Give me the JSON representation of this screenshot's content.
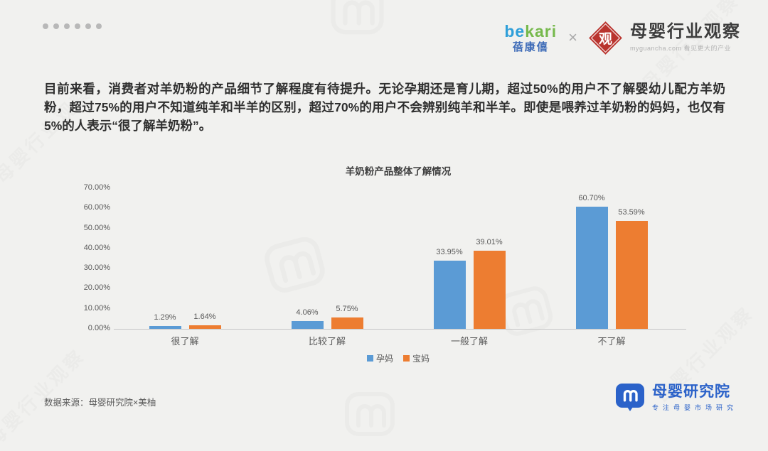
{
  "page": {
    "background": "#f1f1ef"
  },
  "header": {
    "brand_left": {
      "en_part1": "be",
      "en_part2": "kari",
      "cn_name": "蓓康僖"
    },
    "separator": "×",
    "brand_right": {
      "badge_char": "观",
      "badge_color": "#b9342e",
      "title": "母婴行业观察",
      "subtitle": "myguancha.com 看见更大的产业"
    }
  },
  "intro": {
    "text": "目前来看，消费者对羊奶粉的产品细节了解程度有待提升。无论孕期还是育儿期，超过50%的用户不了解婴幼儿配方羊奶粉，超过75%的用户不知道纯羊和半羊的区别，超过70%的用户不会辨别纯羊和半羊。即使是喂养过羊奶粉的妈妈，也仅有5%的人表示“很了解羊奶粉”。"
  },
  "chart_data": {
    "type": "bar",
    "title": "羊奶粉产品整体了解情况",
    "categories": [
      "很了解",
      "比较了解",
      "一般了解",
      "不了解"
    ],
    "series": [
      {
        "name": "孕妈",
        "color": "#5B9BD5",
        "values": [
          1.29,
          4.06,
          33.95,
          60.7
        ]
      },
      {
        "name": "宝妈",
        "color": "#ED7D31",
        "values": [
          1.64,
          5.75,
          39.01,
          53.59
        ]
      }
    ],
    "xlabel": "",
    "ylabel": "",
    "ylim": [
      0,
      70
    ],
    "ytick_step": 10,
    "ytick_format": "0.00%",
    "grid": false,
    "legend_position": "bottom",
    "value_labels_shown": true
  },
  "footer": {
    "source": "数据来源：母婴研究院×美柚",
    "brand": {
      "title": "母婴研究院",
      "subtitle": "专注母婴市场研究",
      "color": "#2b62c9"
    }
  },
  "watermark": {
    "text": "母婴行业观察"
  }
}
